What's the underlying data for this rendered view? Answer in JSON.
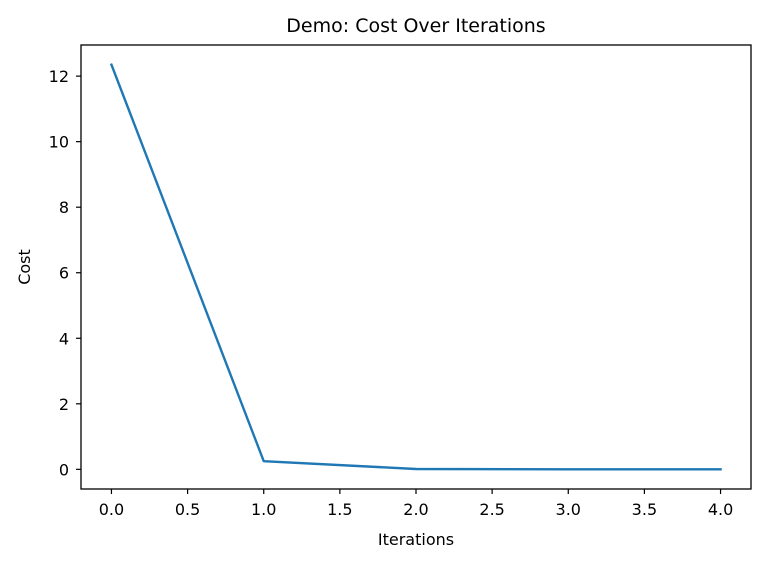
{
  "chart_data": {
    "type": "line",
    "title": "Demo: Cost Over Iterations",
    "xlabel": "Iterations",
    "ylabel": "Cost",
    "xlim": [
      -0.2,
      4.2
    ],
    "ylim": [
      -0.6,
      12.95
    ],
    "x_ticks": [
      0.0,
      0.5,
      1.0,
      1.5,
      2.0,
      2.5,
      3.0,
      3.5,
      4.0
    ],
    "x_tick_labels": [
      "0.0",
      "0.5",
      "1.0",
      "1.5",
      "2.0",
      "2.5",
      "3.0",
      "3.5",
      "4.0"
    ],
    "y_ticks": [
      0,
      2,
      4,
      6,
      8,
      10,
      12
    ],
    "y_tick_labels": [
      "0",
      "2",
      "4",
      "6",
      "8",
      "10",
      "12"
    ],
    "grid": false,
    "series": [
      {
        "x": [
          0,
          1,
          2,
          3,
          4
        ],
        "values": [
          12.35,
          0.25,
          0.01,
          0.0,
          0.0
        ],
        "color": "#1f77b4"
      }
    ]
  }
}
